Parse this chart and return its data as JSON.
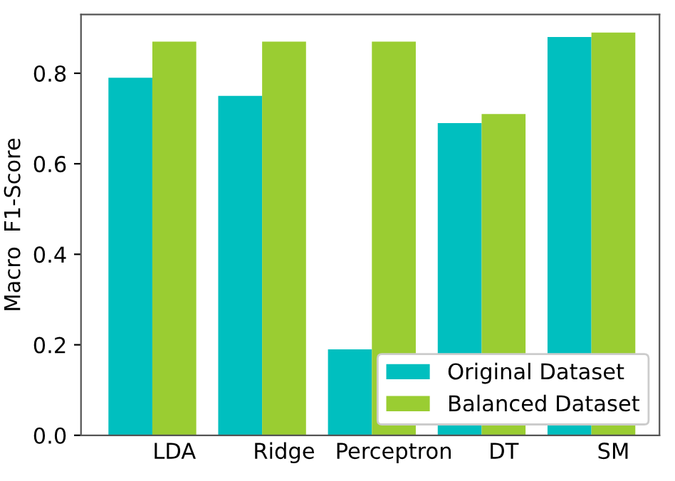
{
  "chart_data": {
    "type": "bar",
    "ylabel": "Macro  F1-Score",
    "categories": [
      "LDA",
      "Ridge",
      "Perceptron",
      "DT",
      "SM"
    ],
    "series": [
      {
        "name": "Original Dataset",
        "color": "#00bfbf",
        "values": [
          0.79,
          0.75,
          0.19,
          0.69,
          0.88
        ]
      },
      {
        "name": "Balanced Dataset",
        "color": "#9acd32",
        "values": [
          0.87,
          0.87,
          0.87,
          0.71,
          0.89
        ]
      }
    ],
    "ylim": [
      0,
      0.93
    ],
    "yticks": [
      {
        "value": 0,
        "label": "0.0"
      },
      0.2,
      0.4,
      0.6,
      0.8
    ],
    "grid": false,
    "legend": "lower right"
  }
}
